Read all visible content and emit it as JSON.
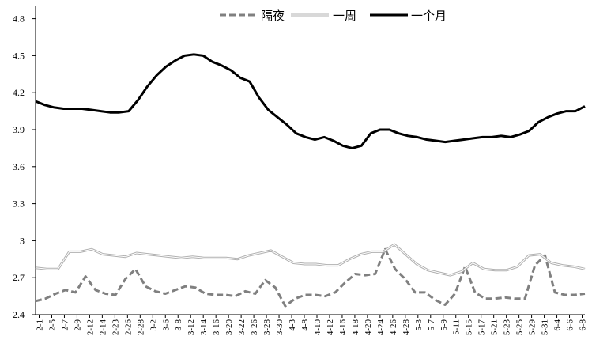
{
  "chart_data": {
    "type": "line",
    "title": "",
    "xlabel": "",
    "ylabel": "",
    "ylim": [
      2.4,
      4.9
    ],
    "y_ticks": [
      "2.4",
      "2.7",
      "3",
      "3.3",
      "3.6",
      "3.9",
      "4.2",
      "4.5",
      "4.8"
    ],
    "x_ticks": [
      "2-1",
      "2-5",
      "2-7",
      "2-9",
      "2-12",
      "2-14",
      "2-23",
      "2-26",
      "2-28",
      "3-2",
      "3-6",
      "3-8",
      "3-12",
      "3-14",
      "3-16",
      "3-20",
      "3-22",
      "3-26",
      "3-28",
      "3-30",
      "4-3",
      "4-8",
      "4-10",
      "4-12",
      "4-16",
      "4-18",
      "4-20",
      "4-24",
      "4-26",
      "4-28",
      "5-3",
      "5-7",
      "5-9",
      "5-11",
      "5-15",
      "5-17",
      "5-21",
      "5-23",
      "5-25",
      "5-29",
      "5-31",
      "6-4",
      "6-6",
      "6-8"
    ],
    "legend_position": "top",
    "grid": false,
    "series": [
      {
        "name": "隔夜",
        "style": "dashed",
        "color": "#808080",
        "values": [
          2.51,
          2.53,
          2.57,
          2.6,
          2.58,
          2.71,
          2.6,
          2.57,
          2.56,
          2.69,
          2.77,
          2.63,
          2.59,
          2.57,
          2.6,
          2.63,
          2.62,
          2.57,
          2.56,
          2.56,
          2.55,
          2.59,
          2.57,
          2.68,
          2.62,
          2.47,
          2.53,
          2.56,
          2.56,
          2.55,
          2.58,
          2.66,
          2.73,
          2.72,
          2.73,
          2.93,
          2.77,
          2.69,
          2.58,
          2.58,
          2.52,
          2.48,
          2.57,
          2.79,
          2.58,
          2.53,
          2.53,
          2.54,
          2.53,
          2.53,
          2.8,
          2.88,
          2.58,
          2.56,
          2.56,
          2.57
        ]
      },
      {
        "name": "一周",
        "style": "solid-light",
        "color": "#b0b0b0",
        "values": [
          2.78,
          2.77,
          2.77,
          2.91,
          2.91,
          2.93,
          2.89,
          2.88,
          2.87,
          2.9,
          2.89,
          2.88,
          2.87,
          2.86,
          2.87,
          2.86,
          2.86,
          2.86,
          2.85,
          2.88,
          2.9,
          2.92,
          2.87,
          2.82,
          2.81,
          2.81,
          2.8,
          2.8,
          2.85,
          2.89,
          2.91,
          2.91,
          2.97,
          2.89,
          2.81,
          2.76,
          2.74,
          2.72,
          2.75,
          2.82,
          2.77,
          2.76,
          2.76,
          2.79,
          2.88,
          2.89,
          2.82,
          2.8,
          2.79,
          2.77
        ]
      },
      {
        "name": "一个月",
        "style": "solid-bold",
        "color": "#000000",
        "values": [
          4.13,
          4.1,
          4.08,
          4.07,
          4.07,
          4.07,
          4.06,
          4.05,
          4.04,
          4.04,
          4.05,
          4.14,
          4.25,
          4.34,
          4.41,
          4.46,
          4.5,
          4.51,
          4.5,
          4.45,
          4.42,
          4.38,
          4.32,
          4.29,
          4.16,
          4.06,
          4.0,
          3.94,
          3.87,
          3.84,
          3.82,
          3.84,
          3.81,
          3.77,
          3.75,
          3.77,
          3.87,
          3.9,
          3.9,
          3.87,
          3.85,
          3.84,
          3.82,
          3.81,
          3.8,
          3.81,
          3.82,
          3.83,
          3.84,
          3.84,
          3.85,
          3.84,
          3.86,
          3.89,
          3.96,
          4.0,
          4.03,
          4.05,
          4.05,
          4.09
        ]
      }
    ]
  }
}
